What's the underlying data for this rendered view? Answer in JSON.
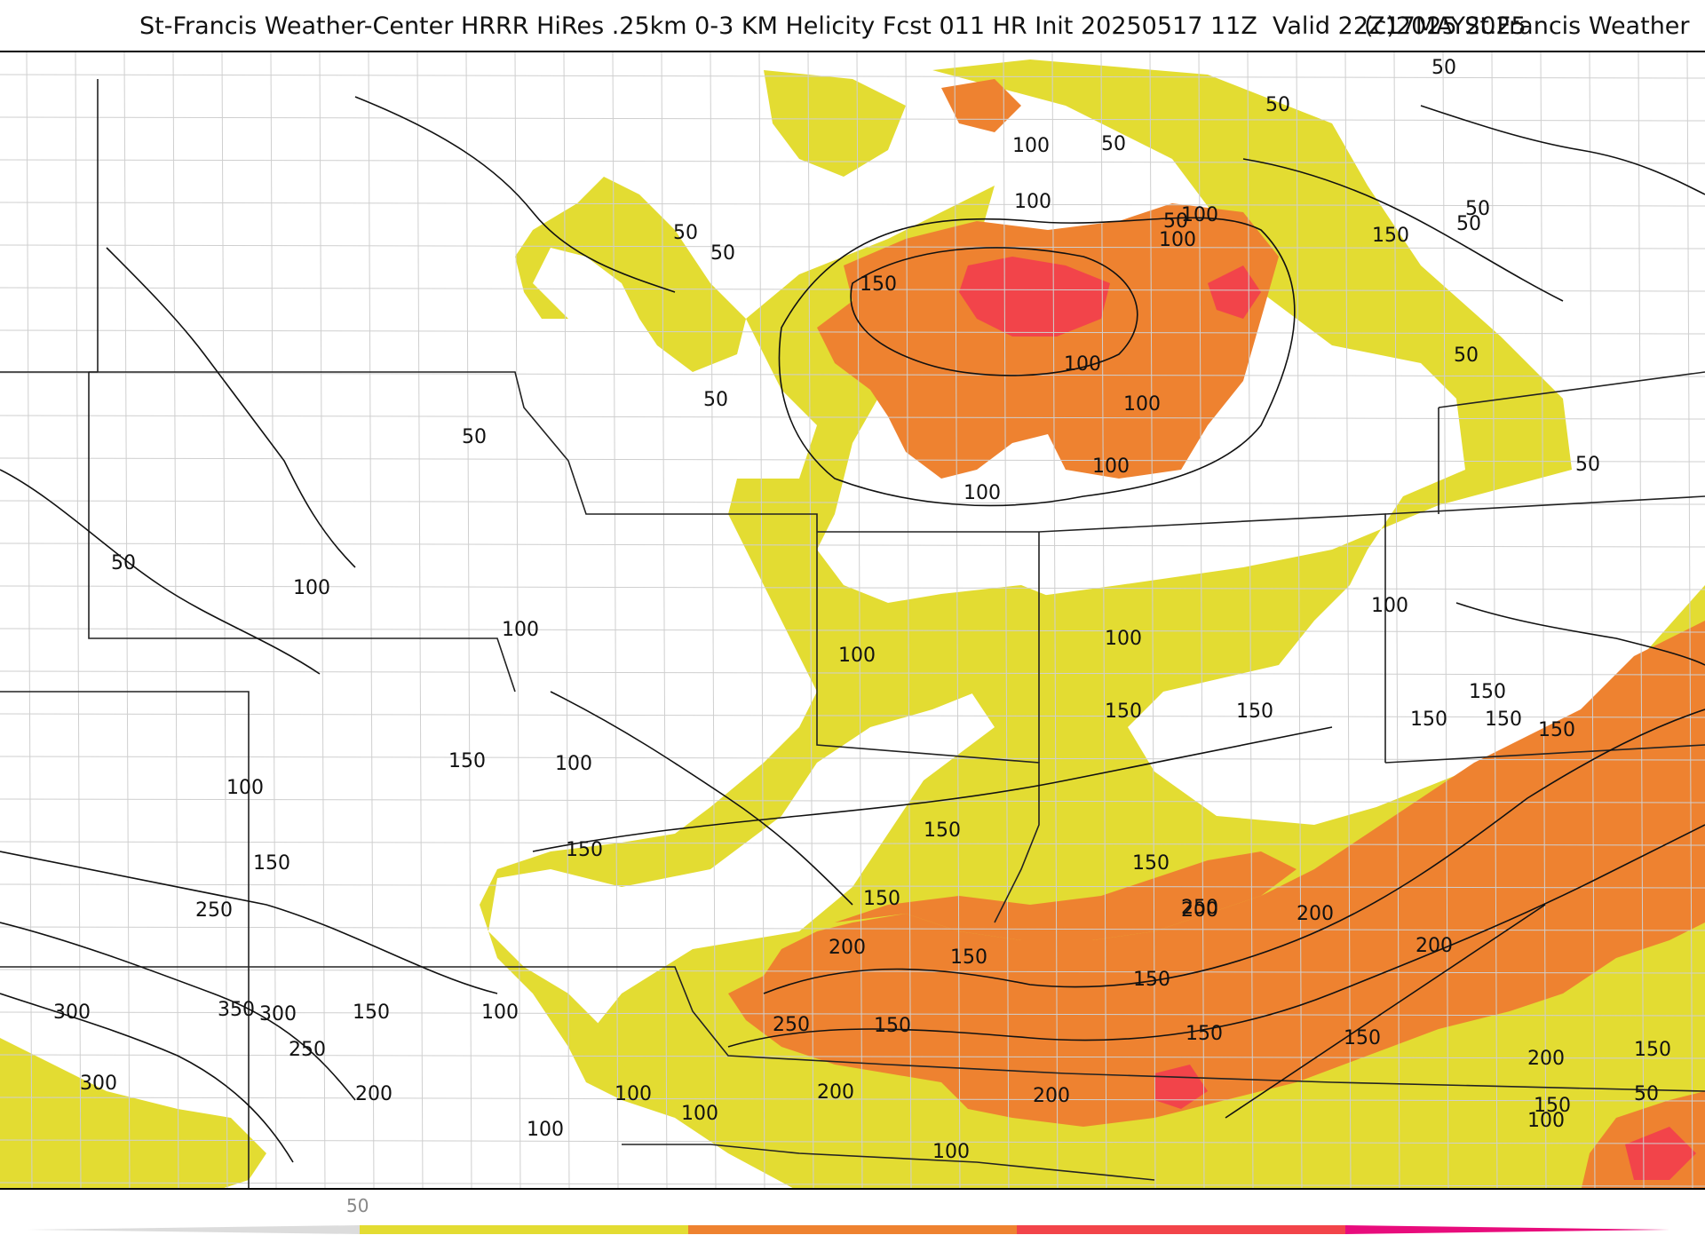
{
  "header": {
    "title": "St-Francis Weather-Center HRRR HiRes .25km 0-3 KM Helicity Fcst 011 HR Init 20250517 11Z  Valid 22Z17MAY2025",
    "credit": "(c)2025 St.Francis Weather"
  },
  "map": {
    "field": "0-3 KM Helicity",
    "fill_colors": [
      "#e3dc32",
      "#ee8230",
      "#f2444a",
      "#e80c7c"
    ],
    "contour_labels": [
      "50",
      "50",
      "100",
      "50",
      "100",
      "50",
      "50",
      "50",
      "50",
      "100",
      "100",
      "150",
      "150",
      "100",
      "100",
      "100",
      "100",
      "50",
      "50",
      "50",
      "50",
      "50",
      "100",
      "100",
      "100",
      "100",
      "100",
      "150",
      "150",
      "150",
      "150",
      "150",
      "100",
      "150",
      "150",
      "100",
      "150",
      "150",
      "150",
      "200",
      "150",
      "200",
      "250",
      "200",
      "250",
      "150",
      "300",
      "350",
      "300",
      "250",
      "300",
      "200",
      "150",
      "150",
      "100",
      "100",
      "100",
      "100",
      "200",
      "250",
      "150",
      "200",
      "150",
      "150",
      "150",
      "150",
      "100",
      "100",
      "50",
      "50",
      "150",
      "200",
      "200"
    ]
  },
  "legend": {
    "tick_label": "50",
    "colors": [
      "#e3dc32",
      "#ee8230",
      "#f2444a",
      "#e80c7c"
    ]
  }
}
